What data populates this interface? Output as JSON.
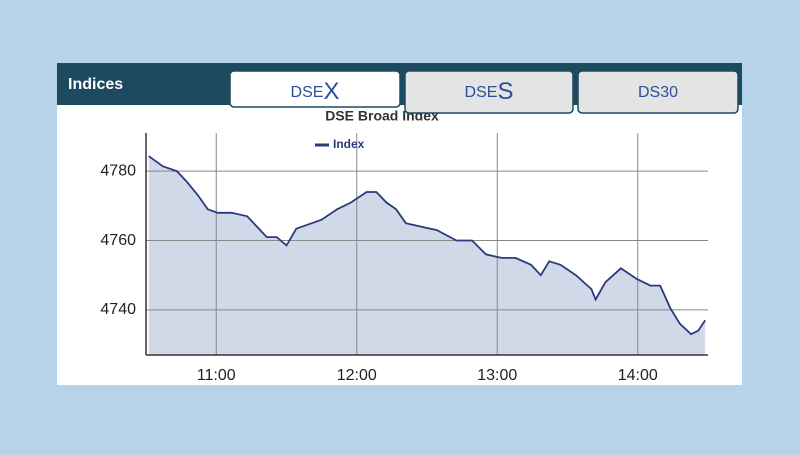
{
  "header": {
    "title": "Indices",
    "tabs": [
      {
        "label": "DSE",
        "emphasis": "X"
      },
      {
        "label": "DSE",
        "emphasis": "S"
      },
      {
        "label": "DS30"
      }
    ]
  },
  "chart_data": {
    "type": "line",
    "title": "DSE Broad Index",
    "x": [
      10.52,
      10.62,
      10.72,
      10.79,
      10.87,
      10.94,
      11.01,
      11.11,
      11.22,
      11.29,
      11.36,
      11.43,
      11.5,
      11.57,
      11.68,
      11.75,
      11.86,
      11.96,
      12.07,
      12.14,
      12.21,
      12.28,
      12.35,
      12.46,
      12.57,
      12.71,
      12.82,
      12.92,
      13.03,
      13.13,
      13.24,
      13.31,
      13.37,
      13.45,
      13.56,
      13.67,
      13.7,
      13.77,
      13.88,
      13.99,
      14.09,
      14.16,
      14.23,
      14.3,
      14.38,
      14.43,
      14.48
    ],
    "series": [
      {
        "name": "Index",
        "color": "#2b3a7a",
        "values": [
          4784.3,
          4781.4,
          4780,
          4777,
          4773,
          4769,
          4768,
          4768,
          4767,
          4764,
          4761,
          4761,
          4758.6,
          4763.4,
          4765,
          4766,
          4769,
          4771,
          4774,
          4774,
          4771,
          4769,
          4765,
          4764,
          4763,
          4760,
          4760,
          4756,
          4755,
          4755,
          4753,
          4750,
          4754,
          4753,
          4750,
          4746,
          4743,
          4748,
          4752,
          4749,
          4747,
          4747,
          4740.6,
          4736,
          4733,
          4734,
          4737
        ]
      }
    ],
    "xlim": [
      10.5,
      14.5
    ],
    "xticks": [
      {
        "value": 11,
        "label": "11:00"
      },
      {
        "value": 12,
        "label": "12:00"
      },
      {
        "value": 13,
        "label": "13:00"
      },
      {
        "value": 14,
        "label": "14:00"
      }
    ],
    "ylim": [
      4727,
      4791
    ],
    "yticks": [
      4740,
      4760,
      4780
    ],
    "grid": true,
    "area_color": "#cfd9e8"
  }
}
